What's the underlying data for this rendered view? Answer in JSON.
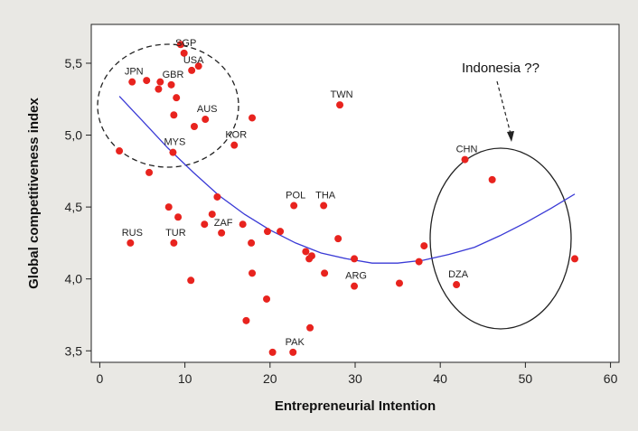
{
  "chart_data": {
    "type": "scatter",
    "title": "",
    "xlabel": "Entrepreneurial Intention",
    "ylabel": "Global competitiveness index",
    "xlim": [
      -1,
      61
    ],
    "ylim": [
      3.42,
      5.77
    ],
    "xticks": [
      0,
      10,
      20,
      30,
      40,
      50,
      60
    ],
    "yticks": [
      3.5,
      4.0,
      4.5,
      5.0,
      5.5
    ],
    "ytick_labels": [
      "3,5",
      "4,0",
      "4,5",
      "5,0",
      "5,5"
    ],
    "grid": false,
    "point_color": "#e8231e",
    "curve_color": "#3a3ad6",
    "points": [
      {
        "x": 2.3,
        "y": 4.89,
        "label": ""
      },
      {
        "x": 3.8,
        "y": 5.37,
        "label": "JPN"
      },
      {
        "x": 3.6,
        "y": 4.25,
        "label": "RUS"
      },
      {
        "x": 5.5,
        "y": 5.38,
        "label": ""
      },
      {
        "x": 5.8,
        "y": 4.74,
        "label": ""
      },
      {
        "x": 6.9,
        "y": 5.32,
        "label": ""
      },
      {
        "x": 7.1,
        "y": 5.37,
        "label": ""
      },
      {
        "x": 8.1,
        "y": 4.5,
        "label": ""
      },
      {
        "x": 8.4,
        "y": 5.35,
        "label": "GBR"
      },
      {
        "x": 8.7,
        "y": 5.14,
        "label": ""
      },
      {
        "x": 8.6,
        "y": 4.88,
        "label": "MYS"
      },
      {
        "x": 8.7,
        "y": 4.25,
        "label": "TUR"
      },
      {
        "x": 9.0,
        "y": 5.26,
        "label": ""
      },
      {
        "x": 9.2,
        "y": 4.43,
        "label": ""
      },
      {
        "x": 9.5,
        "y": 5.63,
        "label": ""
      },
      {
        "x": 9.9,
        "y": 5.57,
        "label": "SGP"
      },
      {
        "x": 10.8,
        "y": 5.45,
        "label": "USA"
      },
      {
        "x": 10.7,
        "y": 3.99,
        "label": ""
      },
      {
        "x": 11.1,
        "y": 5.06,
        "label": ""
      },
      {
        "x": 11.6,
        "y": 5.48,
        "label": ""
      },
      {
        "x": 12.3,
        "y": 4.38,
        "label": ""
      },
      {
        "x": 12.4,
        "y": 5.11,
        "label": "AUS"
      },
      {
        "x": 13.2,
        "y": 4.45,
        "label": ""
      },
      {
        "x": 13.8,
        "y": 4.57,
        "label": ""
      },
      {
        "x": 14.3,
        "y": 4.32,
        "label": "ZAF"
      },
      {
        "x": 15.8,
        "y": 4.93,
        "label": "KOR"
      },
      {
        "x": 16.8,
        "y": 4.38,
        "label": ""
      },
      {
        "x": 17.2,
        "y": 3.71,
        "label": ""
      },
      {
        "x": 17.8,
        "y": 4.25,
        "label": ""
      },
      {
        "x": 17.9,
        "y": 4.04,
        "label": ""
      },
      {
        "x": 17.9,
        "y": 5.12,
        "label": ""
      },
      {
        "x": 19.6,
        "y": 3.86,
        "label": ""
      },
      {
        "x": 19.7,
        "y": 4.33,
        "label": ""
      },
      {
        "x": 20.3,
        "y": 3.49,
        "label": ""
      },
      {
        "x": 21.2,
        "y": 4.33,
        "label": ""
      },
      {
        "x": 22.8,
        "y": 4.51,
        "label": "POL"
      },
      {
        "x": 22.7,
        "y": 3.49,
        "label": "PAK"
      },
      {
        "x": 24.2,
        "y": 4.19,
        "label": ""
      },
      {
        "x": 24.6,
        "y": 4.14,
        "label": ""
      },
      {
        "x": 24.7,
        "y": 3.66,
        "label": ""
      },
      {
        "x": 24.9,
        "y": 4.16,
        "label": ""
      },
      {
        "x": 26.3,
        "y": 4.51,
        "label": "THA"
      },
      {
        "x": 26.4,
        "y": 4.04,
        "label": ""
      },
      {
        "x": 28.0,
        "y": 4.28,
        "label": ""
      },
      {
        "x": 28.2,
        "y": 5.21,
        "label": "TWN"
      },
      {
        "x": 29.9,
        "y": 4.14,
        "label": ""
      },
      {
        "x": 29.9,
        "y": 3.95,
        "label": "ARG"
      },
      {
        "x": 35.2,
        "y": 3.97,
        "label": ""
      },
      {
        "x": 37.5,
        "y": 4.12,
        "label": ""
      },
      {
        "x": 38.1,
        "y": 4.23,
        "label": ""
      },
      {
        "x": 41.9,
        "y": 3.96,
        "label": "DZA"
      },
      {
        "x": 42.9,
        "y": 4.83,
        "label": "CHN"
      },
      {
        "x": 46.1,
        "y": 4.69,
        "label": ""
      },
      {
        "x": 55.8,
        "y": 4.14,
        "label": ""
      }
    ],
    "fit_curve": {
      "x": [
        2.3,
        5,
        8,
        11,
        14,
        17,
        20,
        23,
        26,
        29,
        32,
        35,
        38,
        41,
        44,
        47,
        50,
        53,
        55.8
      ],
      "y": [
        5.27,
        5.1,
        4.91,
        4.74,
        4.58,
        4.45,
        4.34,
        4.25,
        4.18,
        4.14,
        4.11,
        4.11,
        4.13,
        4.17,
        4.22,
        4.3,
        4.39,
        4.49,
        4.59
      ]
    },
    "annotations": {
      "indonesia_text": "Indonesia ??"
    }
  }
}
